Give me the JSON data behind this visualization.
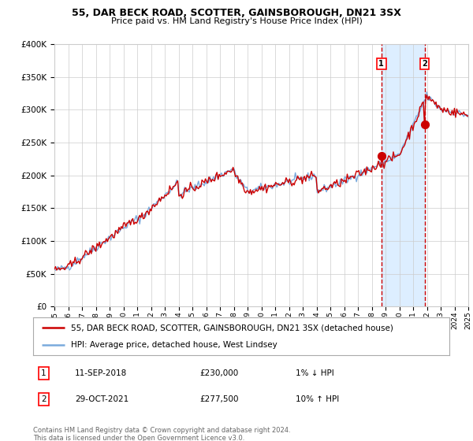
{
  "title": "55, DAR BECK ROAD, SCOTTER, GAINSBOROUGH, DN21 3SX",
  "subtitle": "Price paid vs. HM Land Registry's House Price Index (HPI)",
  "legend_line1": "55, DAR BECK ROAD, SCOTTER, GAINSBOROUGH, DN21 3SX (detached house)",
  "legend_line2": "HPI: Average price, detached house, West Lindsey",
  "annotation1_label": "1",
  "annotation1_date": "11-SEP-2018",
  "annotation1_price": "£230,000",
  "annotation1_hpi": "1% ↓ HPI",
  "annotation2_label": "2",
  "annotation2_date": "29-OCT-2021",
  "annotation2_price": "£277,500",
  "annotation2_hpi": "10% ↑ HPI",
  "copyright": "Contains HM Land Registry data © Crown copyright and database right 2024.\nThis data is licensed under the Open Government Licence v3.0.",
  "start_year": 1995,
  "end_year": 2025,
  "ylim": [
    0,
    400000
  ],
  "hpi_color": "#7aaadd",
  "price_color": "#cc0000",
  "dot_color": "#cc0000",
  "vline_color": "#cc0000",
  "highlight_color": "#ddeeff",
  "grid_color": "#cccccc",
  "bg_color": "#ffffff",
  "event1_year": 2018.7,
  "event1_value": 230000,
  "event2_year": 2021.83,
  "event2_value": 277500
}
